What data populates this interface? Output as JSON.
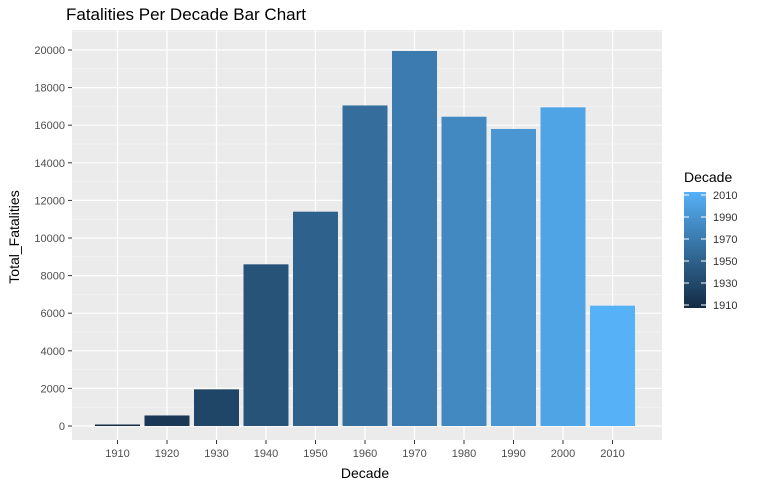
{
  "chart_data": {
    "type": "bar",
    "title": "Fatalities Per Decade Bar Chart",
    "xlabel": "Decade",
    "ylabel": "Total_Fatalities",
    "categories": [
      "1910",
      "1920",
      "1930",
      "1940",
      "1950",
      "1960",
      "1970",
      "1980",
      "1990",
      "2000",
      "2010"
    ],
    "values": [
      80,
      560,
      1950,
      8600,
      11400,
      17050,
      19950,
      16450,
      15800,
      16950,
      6400
    ],
    "ylim": [
      0,
      21000
    ],
    "yticks": [
      0,
      2000,
      4000,
      6000,
      8000,
      10000,
      12000,
      14000,
      16000,
      18000,
      20000
    ],
    "grid": true,
    "legend": {
      "title": "Decade",
      "placement": "right",
      "ticks": [
        "2010",
        "1990",
        "1970",
        "1950",
        "1930",
        "1910"
      ],
      "color_low": "#132B43",
      "color_high": "#56B1F7"
    },
    "colors": {
      "panel_background": "#EBEBEB",
      "grid_major": "#FFFFFF",
      "axis_text": "#4D4D4D",
      "title_text": "#000000"
    }
  }
}
